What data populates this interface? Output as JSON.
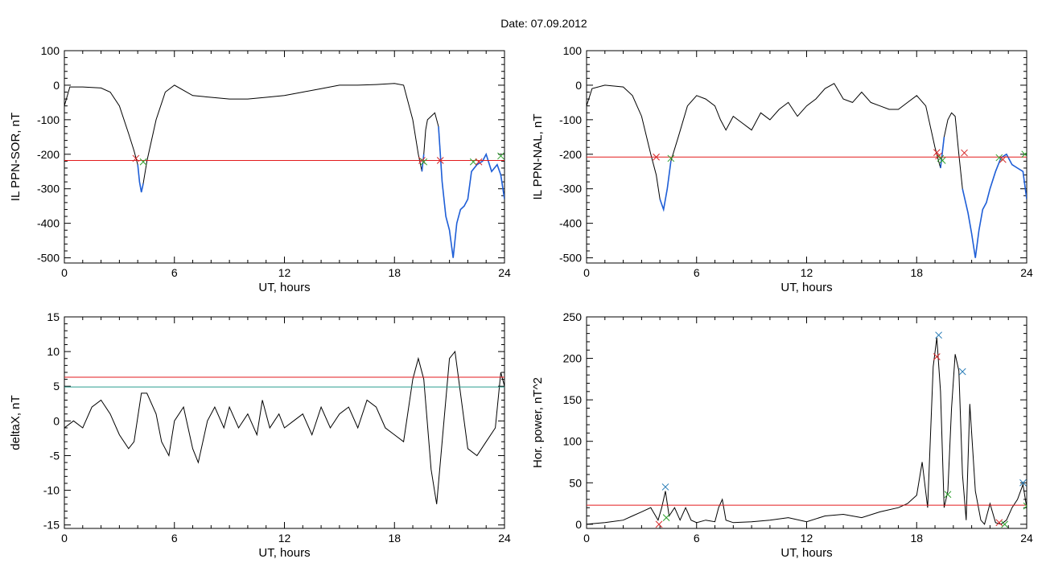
{
  "title": "Date:  07.09.2012",
  "colors": {
    "signal": "#000000",
    "highlight": "#1f5fd8",
    "threshold_red": "#e31a1c",
    "threshold_teal": "#2a9d8f",
    "marker_red": "#d62728",
    "marker_green": "#2ca02c",
    "marker_blue": "#1f77b4"
  },
  "chart_data": [
    {
      "id": "sor",
      "type": "line",
      "ylabel": "IL PPN-SOR, nT",
      "xlabel": "UT, hours",
      "xlim": [
        0,
        24
      ],
      "ylim": [
        -515,
        100
      ],
      "xticks": [
        0,
        6,
        12,
        18,
        24
      ],
      "yticks": [
        100,
        0,
        -100,
        -200,
        -300,
        -400,
        -500
      ],
      "series": [
        {
          "x": [
            0,
            0.3,
            1,
            2,
            2.5,
            3,
            3.5,
            3.8,
            4.0,
            4.1,
            4.2,
            4.3,
            4.5,
            5,
            5.5,
            6,
            7,
            8,
            9,
            10,
            11,
            12,
            13,
            14,
            15,
            16,
            17,
            18,
            18.5,
            19.0,
            19.3,
            19.5,
            19.6,
            19.7,
            19.8,
            20.0,
            20.2,
            20.4,
            20.6,
            20.8,
            21.0,
            21.2,
            21.4,
            21.6,
            21.8,
            22.0,
            22.2,
            22.5,
            22.8,
            23.0,
            23.3,
            23.6,
            23.8,
            24.0
          ],
          "y": [
            -60,
            -5,
            -5,
            -8,
            -20,
            -60,
            -140,
            -190,
            -230,
            -280,
            -310,
            -285,
            -220,
            -100,
            -20,
            0,
            -30,
            -35,
            -40,
            -40,
            -35,
            -30,
            -20,
            -10,
            0,
            0,
            2,
            5,
            0,
            -100,
            -200,
            -250,
            -200,
            -130,
            -100,
            -90,
            -80,
            -120,
            -280,
            -380,
            -420,
            -500,
            -400,
            -360,
            -350,
            -330,
            -250,
            -230,
            -220,
            -200,
            -250,
            -230,
            -260,
            -330
          ]
        }
      ],
      "highlight_x_ranges": [
        [
          4.0,
          4.35
        ],
        [
          19.5,
          19.65
        ],
        [
          20.4,
          24.0
        ]
      ],
      "thresholds": [
        {
          "y": -218,
          "color": "red"
        }
      ],
      "markers": [
        {
          "x": 3.9,
          "y": -212,
          "color": "red"
        },
        {
          "x": 4.3,
          "y": -222,
          "color": "green"
        },
        {
          "x": 19.5,
          "y": -218,
          "color": "red"
        },
        {
          "x": 19.6,
          "y": -222,
          "color": "green"
        },
        {
          "x": 20.5,
          "y": -218,
          "color": "red"
        },
        {
          "x": 22.3,
          "y": -222,
          "color": "green"
        },
        {
          "x": 22.6,
          "y": -222,
          "color": "red"
        },
        {
          "x": 23.8,
          "y": -205,
          "color": "green"
        }
      ]
    },
    {
      "id": "nal",
      "type": "line",
      "ylabel": "IL PPN-NAL, nT",
      "xlabel": "UT, hours",
      "xlim": [
        0,
        24
      ],
      "ylim": [
        -515,
        100
      ],
      "xticks": [
        0,
        6,
        12,
        18,
        24
      ],
      "yticks": [
        100,
        0,
        -100,
        -200,
        -300,
        -400,
        -500
      ],
      "series": [
        {
          "x": [
            0,
            0.3,
            1,
            2,
            2.5,
            3,
            3.5,
            3.8,
            4.0,
            4.2,
            4.4,
            4.6,
            5.0,
            5.5,
            6.0,
            6.5,
            7.0,
            7.3,
            7.6,
            8.0,
            8.5,
            9.0,
            9.5,
            10.0,
            10.5,
            11.0,
            11.5,
            12.0,
            12.5,
            13.0,
            13.5,
            14.0,
            14.5,
            15.0,
            15.5,
            16.0,
            16.5,
            17.0,
            17.5,
            18.0,
            18.5,
            19.0,
            19.3,
            19.5,
            19.7,
            19.9,
            20.1,
            20.3,
            20.5,
            20.8,
            21.0,
            21.2,
            21.4,
            21.6,
            21.8,
            22.0,
            22.3,
            22.6,
            22.9,
            23.2,
            23.5,
            23.8,
            24.0
          ],
          "y": [
            -60,
            -10,
            0,
            -5,
            -30,
            -90,
            -200,
            -260,
            -330,
            -360,
            -300,
            -220,
            -150,
            -60,
            -30,
            -40,
            -60,
            -100,
            -130,
            -90,
            -110,
            -130,
            -80,
            -100,
            -70,
            -50,
            -90,
            -60,
            -40,
            -10,
            5,
            -40,
            -50,
            -20,
            -50,
            -60,
            -70,
            -70,
            -50,
            -30,
            -60,
            -180,
            -240,
            -150,
            -100,
            -80,
            -90,
            -200,
            -300,
            -370,
            -430,
            -500,
            -420,
            -360,
            -340,
            -300,
            -250,
            -210,
            -200,
            -230,
            -240,
            -250,
            -330
          ]
        }
      ],
      "highlight_x_ranges": [
        [
          3.9,
          4.6
        ],
        [
          19.3,
          19.5
        ],
        [
          20.4,
          24.0
        ]
      ],
      "thresholds": [
        {
          "y": -208,
          "color": "red"
        }
      ],
      "markers": [
        {
          "x": 3.8,
          "y": -208,
          "color": "red"
        },
        {
          "x": 4.6,
          "y": -212,
          "color": "green"
        },
        {
          "x": 19.1,
          "y": -195,
          "color": "red"
        },
        {
          "x": 19.2,
          "y": -205,
          "color": "red"
        },
        {
          "x": 19.3,
          "y": -212,
          "color": "green"
        },
        {
          "x": 19.4,
          "y": -218,
          "color": "green"
        },
        {
          "x": 20.6,
          "y": -196,
          "color": "red"
        },
        {
          "x": 22.5,
          "y": -210,
          "color": "green"
        },
        {
          "x": 22.7,
          "y": -215,
          "color": "red"
        },
        {
          "x": 23.9,
          "y": -200,
          "color": "green"
        }
      ]
    },
    {
      "id": "deltax",
      "type": "line",
      "ylabel": "deltaX, nT",
      "xlabel": "UT, hours",
      "xlim": [
        0,
        24
      ],
      "ylim": [
        -15.5,
        15
      ],
      "xticks": [
        0,
        6,
        12,
        18,
        24
      ],
      "yticks": [
        15,
        10,
        5,
        0,
        -5,
        -10,
        -15
      ],
      "series": [
        {
          "x": [
            0,
            0.5,
            1,
            1.5,
            2,
            2.5,
            3,
            3.5,
            3.8,
            4.2,
            4.5,
            5.0,
            5.3,
            5.7,
            6.0,
            6.5,
            7.0,
            7.3,
            7.8,
            8.2,
            8.7,
            9.0,
            9.5,
            10.0,
            10.5,
            10.8,
            11.2,
            11.7,
            12.0,
            12.5,
            13.0,
            13.5,
            14.0,
            14.5,
            15.0,
            15.5,
            16.0,
            16.5,
            17.0,
            17.5,
            18.0,
            18.5,
            19.0,
            19.3,
            19.6,
            20.0,
            20.3,
            20.6,
            21.0,
            21.3,
            21.6,
            22.0,
            22.5,
            23.0,
            23.5,
            23.8,
            24.0
          ],
          "y": [
            -1,
            0,
            -1,
            2,
            3,
            1,
            -2,
            -4,
            -3,
            4,
            4,
            1,
            -3,
            -5,
            0,
            2,
            -4,
            -6,
            0,
            2,
            -1,
            2,
            -1,
            1,
            -2,
            3,
            -1,
            1,
            -1,
            0,
            1,
            -2,
            2,
            -1,
            1,
            2,
            -1,
            3,
            2,
            -1,
            -2,
            -3,
            6,
            9,
            6,
            -7,
            -12,
            -3,
            9,
            10,
            4,
            -4,
            -5,
            -3,
            -1,
            7,
            5
          ]
        }
      ],
      "highlight_x_ranges": [],
      "thresholds": [
        {
          "y": 6.3,
          "color": "red"
        },
        {
          "y": 4.9,
          "color": "teal"
        }
      ],
      "markers": []
    },
    {
      "id": "power",
      "type": "line",
      "ylabel": "Hor. power, nT^2",
      "xlabel": "UT, hours",
      "xlim": [
        0,
        24
      ],
      "ylim": [
        -5,
        250
      ],
      "xticks": [
        0,
        6,
        12,
        18,
        24
      ],
      "yticks": [
        250,
        200,
        150,
        100,
        50,
        0
      ],
      "series": [
        {
          "x": [
            0,
            1,
            2,
            2.5,
            3,
            3.5,
            3.9,
            4.1,
            4.3,
            4.5,
            4.8,
            5.1,
            5.4,
            5.7,
            6.0,
            6.5,
            7.0,
            7.2,
            7.4,
            7.6,
            8.0,
            9.0,
            10.0,
            11.0,
            12.0,
            13.0,
            14.0,
            15.0,
            16.0,
            17.0,
            17.5,
            18.0,
            18.3,
            18.6,
            18.9,
            19.1,
            19.3,
            19.5,
            19.7,
            19.9,
            20.1,
            20.3,
            20.5,
            20.7,
            20.9,
            21.2,
            21.5,
            21.7,
            22.0,
            22.3,
            22.6,
            22.9,
            23.2,
            23.5,
            23.8,
            24.0
          ],
          "y": [
            0,
            2,
            5,
            10,
            15,
            20,
            5,
            20,
            40,
            10,
            20,
            5,
            20,
            5,
            2,
            5,
            3,
            20,
            30,
            5,
            2,
            3,
            5,
            8,
            3,
            10,
            12,
            8,
            15,
            20,
            25,
            35,
            75,
            20,
            190,
            225,
            160,
            20,
            40,
            140,
            205,
            185,
            60,
            5,
            145,
            40,
            5,
            0,
            25,
            2,
            0,
            5,
            20,
            30,
            48,
            20
          ]
        }
      ],
      "highlight_x_ranges": [],
      "thresholds": [
        {
          "y": 23,
          "color": "red"
        }
      ],
      "markers": [
        {
          "x": 4.3,
          "y": 45,
          "color": "blue"
        },
        {
          "x": 3.95,
          "y": 0,
          "color": "red"
        },
        {
          "x": 4.35,
          "y": 8,
          "color": "green"
        },
        {
          "x": 19.2,
          "y": 228,
          "color": "blue"
        },
        {
          "x": 19.1,
          "y": 202,
          "color": "red"
        },
        {
          "x": 19.7,
          "y": 36,
          "color": "green"
        },
        {
          "x": 20.5,
          "y": 184,
          "color": "blue"
        },
        {
          "x": 22.5,
          "y": 2,
          "color": "red"
        },
        {
          "x": 22.8,
          "y": 0,
          "color": "green"
        },
        {
          "x": 23.8,
          "y": 50,
          "color": "blue"
        },
        {
          "x": 24.0,
          "y": 22,
          "color": "green"
        }
      ]
    }
  ]
}
